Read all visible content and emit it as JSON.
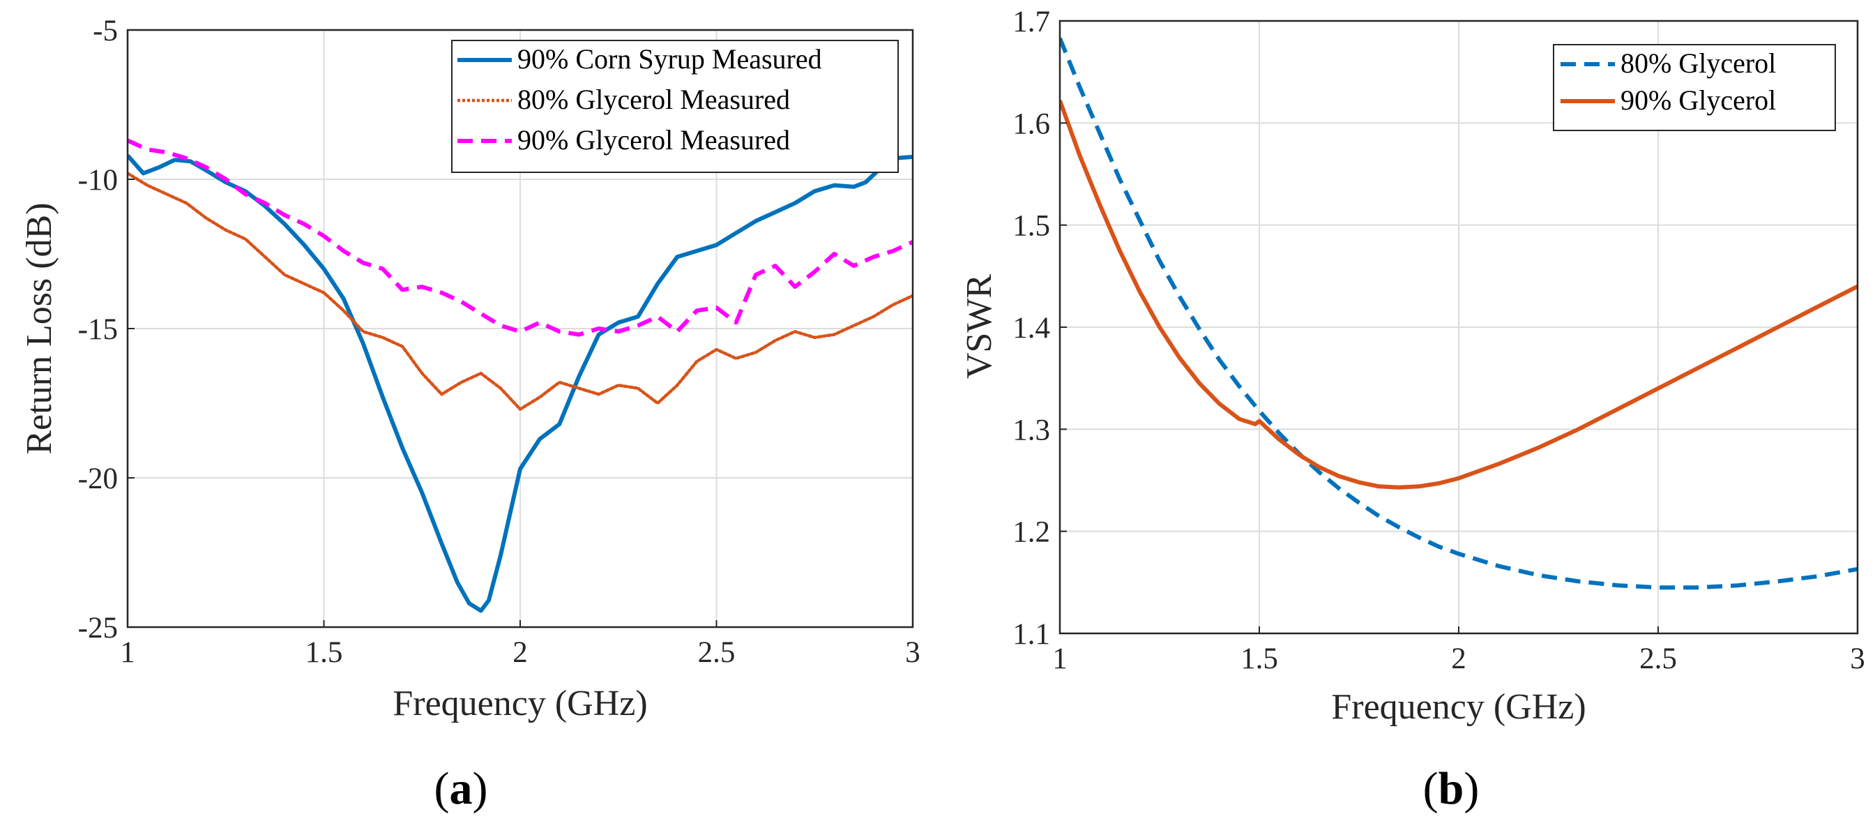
{
  "chart_data": [
    {
      "type": "line",
      "panel": "a",
      "xlabel": "Frequency (GHz)",
      "ylabel": "Return Loss (dB)",
      "xlim": [
        1,
        3
      ],
      "ylim": [
        -25,
        -5
      ],
      "xticks": [
        "1",
        "1.5",
        "2",
        "2.5",
        "3"
      ],
      "yticks": [
        "-5",
        "-10",
        "-15",
        "-20",
        "-25"
      ],
      "grid": true,
      "legend_position": "top-right",
      "series": [
        {
          "name": "90% Corn Syrup Measured",
          "color": "#0072BD",
          "style": "solid",
          "x": [
            1.0,
            1.04,
            1.08,
            1.12,
            1.16,
            1.2,
            1.25,
            1.3,
            1.35,
            1.4,
            1.45,
            1.5,
            1.55,
            1.6,
            1.65,
            1.7,
            1.75,
            1.8,
            1.84,
            1.87,
            1.9,
            1.92,
            1.95,
            2.0,
            2.05,
            2.1,
            2.15,
            2.2,
            2.25,
            2.3,
            2.35,
            2.4,
            2.45,
            2.5,
            2.55,
            2.6,
            2.65,
            2.7,
            2.75,
            2.8,
            2.85,
            2.88,
            2.92,
            2.95,
            3.0
          ],
          "y": [
            -9.2,
            -9.8,
            -9.6,
            -9.35,
            -9.4,
            -9.7,
            -10.1,
            -10.4,
            -10.9,
            -11.5,
            -12.2,
            -13.0,
            -14.0,
            -15.5,
            -17.3,
            -19.0,
            -20.5,
            -22.2,
            -23.5,
            -24.2,
            -24.45,
            -24.1,
            -22.6,
            -19.7,
            -18.7,
            -18.2,
            -16.6,
            -15.2,
            -14.8,
            -14.6,
            -13.5,
            -12.6,
            -12.4,
            -12.2,
            -11.8,
            -11.4,
            -11.1,
            -10.8,
            -10.4,
            -10.2,
            -10.25,
            -10.1,
            -9.6,
            -9.3,
            -9.25
          ]
        },
        {
          "name": "80% Glycerol Measured",
          "color": "#D95319",
          "style": "dotted",
          "x": [
            1.0,
            1.05,
            1.1,
            1.15,
            1.2,
            1.25,
            1.3,
            1.35,
            1.4,
            1.45,
            1.5,
            1.55,
            1.6,
            1.65,
            1.7,
            1.75,
            1.8,
            1.85,
            1.9,
            1.95,
            2.0,
            2.05,
            2.1,
            2.15,
            2.2,
            2.25,
            2.3,
            2.35,
            2.4,
            2.45,
            2.5,
            2.55,
            2.6,
            2.65,
            2.7,
            2.75,
            2.8,
            2.85,
            2.9,
            2.95,
            3.0
          ],
          "y": [
            -9.8,
            -10.2,
            -10.5,
            -10.8,
            -11.3,
            -11.7,
            -12.0,
            -12.6,
            -13.2,
            -13.5,
            -13.8,
            -14.4,
            -15.1,
            -15.3,
            -15.6,
            -16.5,
            -17.2,
            -16.8,
            -16.5,
            -17.0,
            -17.7,
            -17.3,
            -16.8,
            -17.0,
            -17.2,
            -16.9,
            -17.0,
            -17.5,
            -16.9,
            -16.1,
            -15.7,
            -16.0,
            -15.8,
            -15.4,
            -15.1,
            -15.3,
            -15.2,
            -14.9,
            -14.6,
            -14.2,
            -13.9
          ]
        },
        {
          "name": "90% Glycerol Measured",
          "color": "#FF00FF",
          "style": "dashed",
          "x": [
            1.0,
            1.05,
            1.1,
            1.15,
            1.2,
            1.25,
            1.3,
            1.35,
            1.4,
            1.45,
            1.5,
            1.55,
            1.6,
            1.65,
            1.7,
            1.75,
            1.8,
            1.85,
            1.9,
            1.95,
            2.0,
            2.05,
            2.1,
            2.15,
            2.2,
            2.25,
            2.3,
            2.35,
            2.4,
            2.45,
            2.5,
            2.55,
            2.6,
            2.65,
            2.7,
            2.75,
            2.8,
            2.85,
            2.9,
            2.95,
            3.0
          ],
          "y": [
            -8.7,
            -9.0,
            -9.1,
            -9.3,
            -9.6,
            -10.0,
            -10.5,
            -10.8,
            -11.2,
            -11.5,
            -11.9,
            -12.4,
            -12.8,
            -13.0,
            -13.7,
            -13.6,
            -13.8,
            -14.1,
            -14.5,
            -14.9,
            -15.1,
            -14.8,
            -15.1,
            -15.2,
            -15.0,
            -15.1,
            -14.9,
            -14.6,
            -15.1,
            -14.4,
            -14.3,
            -14.8,
            -13.2,
            -12.9,
            -13.6,
            -13.1,
            -12.5,
            -12.9,
            -12.6,
            -12.4,
            -12.1
          ]
        }
      ]
    },
    {
      "type": "line",
      "panel": "b",
      "xlabel": "Frequency (GHz)",
      "ylabel": "VSWR",
      "xlim": [
        1,
        3
      ],
      "ylim": [
        1.1,
        1.7
      ],
      "xticks": [
        "1",
        "1.5",
        "2",
        "2.5",
        "3"
      ],
      "yticks": [
        "1.7",
        "1.6",
        "1.5",
        "1.4",
        "1.3",
        "1.2",
        "1.1"
      ],
      "grid": true,
      "legend_position": "top-right",
      "series": [
        {
          "name": "80% Glycerol",
          "color": "#0072BD",
          "style": "dashed",
          "x": [
            1.0,
            1.05,
            1.1,
            1.15,
            1.2,
            1.25,
            1.3,
            1.35,
            1.4,
            1.45,
            1.5,
            1.55,
            1.6,
            1.65,
            1.7,
            1.75,
            1.8,
            1.85,
            1.9,
            1.95,
            2.0,
            2.1,
            2.2,
            2.3,
            2.4,
            2.5,
            2.6,
            2.7,
            2.8,
            2.9,
            3.0
          ],
          "y": [
            1.683,
            1.635,
            1.59,
            1.545,
            1.505,
            1.465,
            1.43,
            1.398,
            1.368,
            1.342,
            1.318,
            1.296,
            1.276,
            1.258,
            1.242,
            1.228,
            1.215,
            1.204,
            1.194,
            1.185,
            1.178,
            1.166,
            1.157,
            1.151,
            1.147,
            1.145,
            1.145,
            1.147,
            1.151,
            1.156,
            1.163
          ]
        },
        {
          "name": "90% Glycerol",
          "color": "#D95319",
          "style": "solid",
          "x": [
            1.0,
            1.05,
            1.1,
            1.15,
            1.2,
            1.25,
            1.3,
            1.35,
            1.4,
            1.45,
            1.49,
            1.5,
            1.55,
            1.6,
            1.65,
            1.7,
            1.75,
            1.8,
            1.85,
            1.9,
            1.95,
            2.0,
            2.1,
            2.2,
            2.3,
            2.4,
            2.5,
            2.6,
            2.7,
            2.8,
            2.9,
            3.0
          ],
          "y": [
            1.622,
            1.568,
            1.52,
            1.475,
            1.435,
            1.4,
            1.37,
            1.345,
            1.325,
            1.31,
            1.305,
            1.308,
            1.29,
            1.275,
            1.263,
            1.254,
            1.248,
            1.244,
            1.243,
            1.244,
            1.247,
            1.252,
            1.266,
            1.282,
            1.3,
            1.32,
            1.34,
            1.36,
            1.38,
            1.4,
            1.42,
            1.44
          ]
        }
      ]
    }
  ],
  "captions": {
    "a": "a",
    "b": "b"
  }
}
